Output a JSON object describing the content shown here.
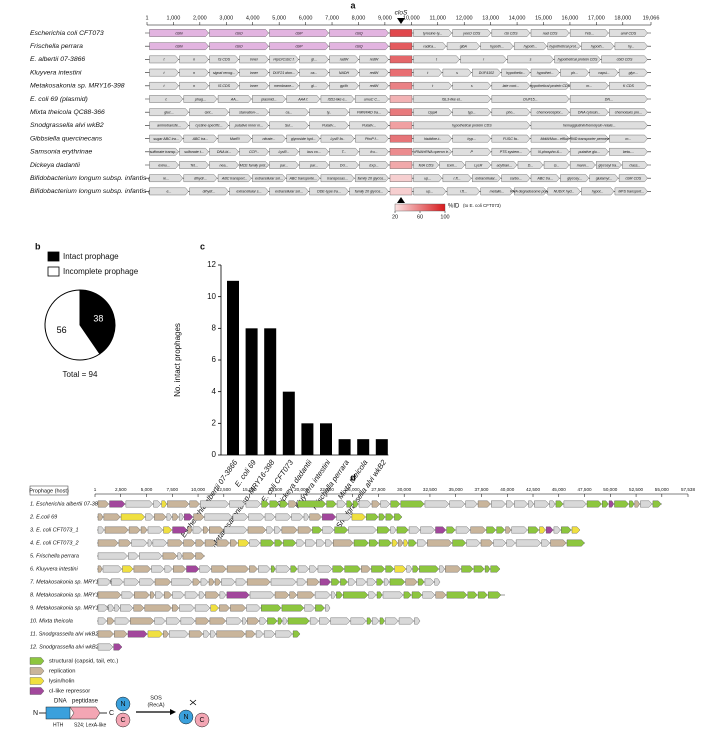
{
  "panel_a": {
    "label": "a",
    "ticks": [
      1,
      {
        "value": 1000,
        "label": "1,000"
      },
      {
        "value": 2000,
        "label": "2,000"
      },
      {
        "value": 3000,
        "label": "3,000"
      },
      {
        "value": 4000,
        "label": "4,000"
      },
      {
        "value": 5000,
        "label": "5,000"
      },
      {
        "value": 6000,
        "label": "6,000"
      },
      {
        "value": 7000,
        "label": "7,000"
      },
      {
        "value": 8000,
        "label": "8,000"
      },
      {
        "value": 9000,
        "label": "9,000"
      },
      {
        "value": 10000,
        "label": "10,000"
      },
      {
        "value": 11000,
        "label": "11,000"
      },
      {
        "value": 12000,
        "label": "12,000"
      },
      {
        "value": 13000,
        "label": "13,000"
      },
      {
        "value": 14000,
        "label": "14,000"
      },
      {
        "value": 15000,
        "label": "15,000"
      },
      {
        "value": 16000,
        "label": "16,000"
      },
      {
        "value": 17000,
        "label": "17,000"
      },
      {
        "value": 18000,
        "label": "18,000"
      },
      {
        "value": 19066,
        "label": "19,066"
      }
    ],
    "locus": "cloS",
    "rows": [
      {
        "name": "Escherichia coli CFT073",
        "left": [
          "cbiN",
          "cbiO",
          "cbiP",
          "cbiQ"
        ],
        "right": [
          "tyrosine-ty...",
          "yeeO CDS",
          "cbi CDS",
          "nad CDS",
          "Yeb...",
          "amiI CDS"
        ]
      },
      {
        "name": "Frischella perrara",
        "left": [
          "cbiN",
          "cbiO",
          "cbiP",
          "cbiQ"
        ],
        "right": [
          "radica...",
          "glbA",
          "hypoth...",
          "hypoth...",
          "hypothetical prot...",
          "hypoth...",
          "hy..."
        ]
      },
      {
        "name": "E. albertii 07-3866",
        "left": [
          "t",
          "n",
          "IS CDS",
          "inner",
          "HipO/CsbC f.",
          "gl...",
          "radW",
          "redW"
        ],
        "right": [
          "t",
          "r",
          "s",
          "hypothetical protein CDS",
          "cbiD CDS"
        ]
      },
      {
        "name": "Kluyvera intestini",
        "left": [
          "t",
          "n",
          "signal recog...",
          "inner",
          "DUF21 dom...",
          "ca...",
          "NADH",
          "redW"
        ],
        "right": [
          "t",
          "s",
          "DUF4102",
          "hypothetic...",
          "hypothet...",
          "ph...",
          "capsi...",
          "glyc..."
        ]
      },
      {
        "name": "Metakosakonia sp. MRY16-398",
        "left": [
          "t",
          "n",
          "IS CDS",
          "inner",
          "membrane...",
          "gl...",
          "gp/th",
          "redW"
        ],
        "right": [
          "t",
          "s",
          "late cont...",
          "hypothetical protein CDS",
          "m...",
          "K CDS"
        ]
      },
      {
        "name": "E. coli 69 (plasmid)",
        "left": [
          "c",
          "phag...",
          "AA...",
          "plasmid...",
          "AAA f.",
          "IS51-like e...",
          "umuC C..."
        ],
        "right": [
          "ISL3-like el...",
          "DUF15...",
          "DN..."
        ]
      },
      {
        "name": "Mixta theicola QC88-366",
        "left": [
          "gluc...",
          "Gnt...",
          "starvation-...",
          "ca...",
          "ty..",
          "FMN/FAD tra..."
        ],
        "right": [
          "OppA",
          "typ...",
          "pho...",
          "chemoreceptor...",
          "DNA cytosin...",
          "chemotaxis pro..."
        ]
      },
      {
        "name": "Snodgrassella alvi wkB2",
        "left": [
          "aminotransfe...",
          "cystine-specific...",
          "putative inner m...",
          "Sul...",
          "Putativ...",
          "Putativ..."
        ],
        "right": [
          "hypothetical protein CDS",
          "hemagglutinin/hemolysin-relate..."
        ]
      },
      {
        "name": "Gibbsiella quercinecans",
        "left": [
          "sugar ABC tra...",
          "ABC tra...",
          "MarRi",
          "nitrate...",
          "glycoside hyd...",
          "LysR fa..",
          "PhoP f..."
        ],
        "right": [
          "histidine-t..",
          "hyp...",
          "FUSC fa..",
          "MdtA/Mux...",
          "efflux RND transporter permease s...",
          "m..."
        ]
      },
      {
        "name": "Samsonia erythrinae",
        "left": [
          "sulfonate transp...",
          "sulfonate t...",
          "DNA bi...",
          "CCP...",
          "LysR...",
          "bus co...",
          "T...",
          "fru..."
        ],
        "right": [
          "tRNA/rRNA operon tr...",
          "P",
          "PTS system...",
          "N-phospho &...",
          "putative glu...",
          "beta-..."
        ]
      },
      {
        "name": "Dickeya dadantii",
        "left": [
          "exinu...",
          "Tet...",
          "nea...",
          "MCE family prot...",
          "par...",
          "par...",
          "DU...",
          "Exp..."
        ],
        "right": [
          "fetA CDS",
          "Exin...",
          "LysR",
          "acyltran...",
          "D...",
          "G...",
          "mann...",
          "glycosyl tra...",
          "class..."
        ]
      },
      {
        "name": "Bifidobacterium longum subsp. infantis (1)",
        "left": [
          "ie...",
          "dihydr...",
          "ABC transport...",
          "extracellular sol...",
          "ABC transporte...",
          "transposas...",
          "family 20 glycos..."
        ],
        "right": [
          "up...",
          "r.ft...",
          "extracellular...",
          "carbo...",
          "ABC tra...",
          "glycosy...",
          "glutamyl...",
          "cbiR CDS"
        ]
      },
      {
        "name": "Bifidobacterium longum subsp. infantis (2)",
        "left": [
          "e...",
          "dihydr...",
          "extracellular s...",
          "extracellular sol...",
          "DDE-type tra...",
          "family 20 glycos..."
        ],
        "right": [
          "up...",
          "r.ft...",
          "metallo...",
          "RNA degradosome poly...",
          "NUDIX hyd...",
          "hypot...",
          "MFS transport..."
        ]
      }
    ],
    "colorbar": {
      "title": "%ID",
      "subtitle": "(to E. coli CFT073)",
      "ticks": [
        20,
        60,
        100
      ]
    }
  },
  "chart_data": [
    {
      "type": "pie",
      "label": "b",
      "categories": [
        "Intact prophage",
        "Incomplete prophage"
      ],
      "values": [
        38,
        56
      ],
      "colors": [
        "#000000",
        "#ffffff"
      ],
      "total_label": "Total = 94"
    },
    {
      "type": "bar",
      "label": "c",
      "ylabel": "No. intact prophages",
      "categories": [
        "Escherichia albertii 07-3866",
        "E. coli 69",
        "Metakosakonia sp. MRY16-398",
        "E. coli CFT073",
        "Dickeya dadantii",
        "Kluyvera intestini",
        "Frischella perrara",
        "Mixta theicola",
        "Snodgrassella alvi wkB2"
      ],
      "values": [
        11,
        8,
        8,
        4,
        2,
        2,
        1,
        1,
        1
      ],
      "color": "#000000",
      "ylim": [
        0,
        12
      ],
      "yticks": [
        0,
        2,
        4,
        6,
        8,
        10,
        12
      ]
    }
  ],
  "panel_d": {
    "label": "d",
    "axis_title": "Prophage (host)",
    "ticks": [
      1,
      {
        "value": 2500,
        "label": "2,500"
      },
      {
        "value": 5000,
        "label": "5,000"
      },
      {
        "value": 7500,
        "label": "7,500"
      },
      {
        "value": 10000,
        "label": "10,000"
      },
      {
        "value": 12500,
        "label": "12,500"
      },
      {
        "value": 15000,
        "label": "15,000"
      },
      {
        "value": 17500,
        "label": "17,500"
      },
      {
        "value": 20000,
        "label": "20,000"
      },
      {
        "value": 22500,
        "label": "22,500"
      },
      {
        "value": 25000,
        "label": "25,000"
      },
      {
        "value": 27500,
        "label": "27,500"
      },
      {
        "value": 30000,
        "label": "30,000"
      },
      {
        "value": 32500,
        "label": "32,500"
      },
      {
        "value": 35000,
        "label": "35,000"
      },
      {
        "value": 37500,
        "label": "37,500"
      },
      {
        "value": 40000,
        "label": "40,000"
      },
      {
        "value": 42500,
        "label": "42,500"
      },
      {
        "value": 45000,
        "label": "45,000"
      },
      {
        "value": 47500,
        "label": "47,500"
      },
      {
        "value": 50000,
        "label": "50,000"
      },
      {
        "value": 52500,
        "label": "52,500"
      },
      {
        "value": 55000,
        "label": "55,000"
      },
      {
        "value": 57538,
        "label": "57,538"
      }
    ],
    "rows": [
      "1. Escherichia albertii 07-3866",
      "2. E.coli 69",
      "3. E. coli CFT073_1",
      "4. E. coli CFT073_2",
      "5. Frischella perrara",
      "6. Kluyvera intestini",
      "7. Metakosakonia sp. MRY16-398_1",
      "8. Metakosakonia sp. MRY16-398_2",
      "9. Metakosakonia sp. MRY16-398_3",
      "10. Mixta theicola",
      "11. Snodgrassella alvi wkB2_1",
      "12. Snodgrassella alvi wkB2_2"
    ],
    "legend": [
      {
        "label": "structural (capsid, tail, etc.)",
        "color": "#8dc63f"
      },
      {
        "label": "replication",
        "color": "#c9b59b"
      },
      {
        "label": "lysin/holin",
        "color": "#f0e040"
      },
      {
        "label": "cI-like repressor",
        "color": "#a2479c"
      }
    ],
    "schematic": {
      "dna": "DNA",
      "peptidase": "peptidase",
      "n": "N",
      "c": "C",
      "hth": "HTH",
      "s24": "S24; LexA-like",
      "sos": "SOS",
      "reca": "(RecA)"
    }
  }
}
